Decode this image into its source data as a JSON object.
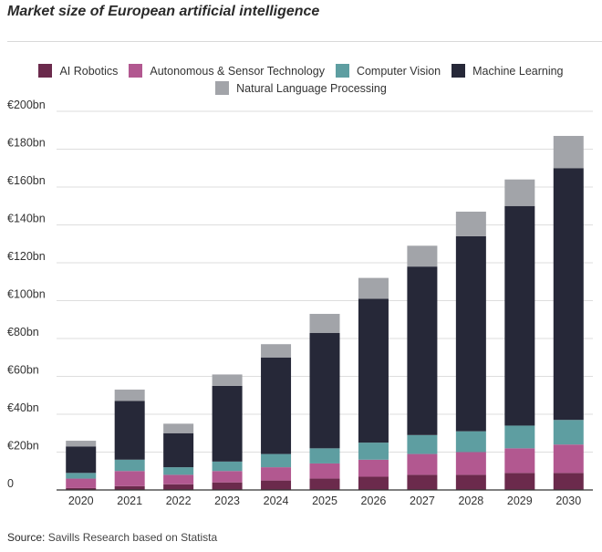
{
  "title": "Market size of European artificial intelligence",
  "source_label": "Source:",
  "source_text": "Savills Research based on Statista",
  "colors": {
    "AI Robotics": "#6b2a4c",
    "Autonomous & Sensor Technology": "#b25890",
    "Computer Vision": "#5e9ea1",
    "Machine Learning": "#262838",
    "Natural Language Processing": "#a2a4a9"
  },
  "chart_data": {
    "type": "bar",
    "stacked": true,
    "categories": [
      "2020",
      "2021",
      "2022",
      "2023",
      "2024",
      "2025",
      "2026",
      "2027",
      "2028",
      "2029",
      "2030"
    ],
    "series": [
      {
        "name": "AI Robotics",
        "values": [
          1,
          2,
          3,
          4,
          5,
          6,
          7,
          8,
          8,
          9,
          9
        ]
      },
      {
        "name": "Autonomous & Sensor Technology",
        "values": [
          5,
          8,
          5,
          6,
          7,
          8,
          9,
          11,
          12,
          13,
          15
        ]
      },
      {
        "name": "Computer Vision",
        "values": [
          3,
          6,
          4,
          5,
          7,
          8,
          9,
          10,
          11,
          12,
          13
        ]
      },
      {
        "name": "Machine Learning",
        "values": [
          14,
          31,
          18,
          40,
          51,
          61,
          76,
          89,
          103,
          116,
          133
        ]
      },
      {
        "name": "Natural Language Processing",
        "values": [
          3,
          6,
          5,
          6,
          7,
          10,
          11,
          11,
          13,
          14,
          17
        ]
      }
    ],
    "y_ticks": [
      "0",
      "€20bn",
      "€40bn",
      "€60bn",
      "€80bn",
      "€100bn",
      "€120bn",
      "€140bn",
      "€160bn",
      "€180bn",
      "€200bn"
    ],
    "ylim": [
      0,
      200
    ],
    "legend_position": "top",
    "grid": true
  }
}
